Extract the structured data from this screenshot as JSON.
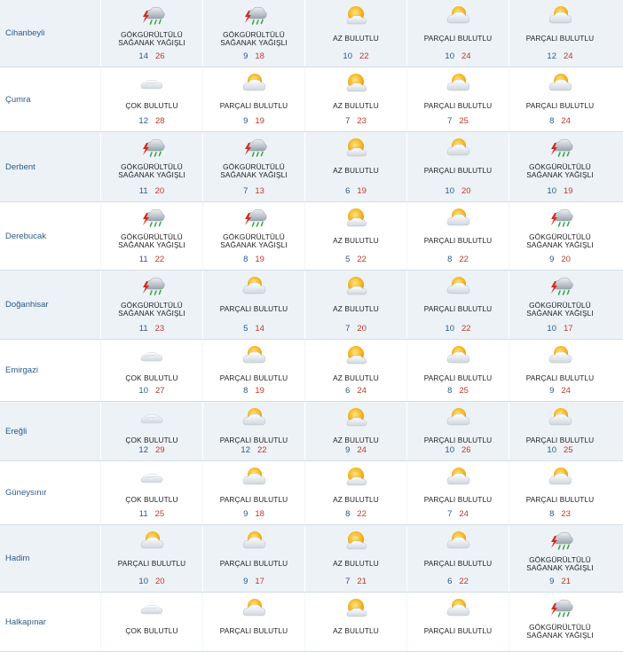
{
  "colors": {
    "row_shaded": "#edf2f7",
    "city_text": "#2a5a8a",
    "min_temp": "#2a5a8a",
    "max_temp": "#c0392b"
  },
  "rows": [
    {
      "city": "Cihanbeyli",
      "days": [
        {
          "icon": "thunderstorm-rain-icon",
          "condition": "GÖKGÜRÜLTÜLÜ SAĞANAK YAĞIŞLI",
          "min": "14",
          "max": "26"
        },
        {
          "icon": "thunderstorm-rain-icon",
          "condition": "GÖKGÜRÜLTÜLÜ SAĞANAK YAĞIŞLI",
          "min": "9",
          "max": "18"
        },
        {
          "icon": "sun-cloud-icon",
          "condition": "AZ BULUTLU",
          "min": "10",
          "max": "22"
        },
        {
          "icon": "partly-cloudy-icon",
          "condition": "PARÇALI BULUTLU",
          "min": "10",
          "max": "24"
        },
        {
          "icon": "partly-cloudy-icon",
          "condition": "PARÇALI BULUTLU",
          "min": "12",
          "max": "24"
        }
      ]
    },
    {
      "city": "Çumra",
      "days": [
        {
          "icon": "cloudy-icon",
          "condition": "ÇOK BULUTLU",
          "min": "12",
          "max": "28"
        },
        {
          "icon": "partly-cloudy-icon",
          "condition": "PARÇALI BULUTLU",
          "min": "9",
          "max": "19"
        },
        {
          "icon": "sun-cloud-icon",
          "condition": "AZ BULUTLU",
          "min": "7",
          "max": "23"
        },
        {
          "icon": "partly-cloudy-icon",
          "condition": "PARÇALI BULUTLU",
          "min": "7",
          "max": "25"
        },
        {
          "icon": "partly-cloudy-icon",
          "condition": "PARÇALI BULUTLU",
          "min": "8",
          "max": "24"
        }
      ]
    },
    {
      "city": "Derbent",
      "days": [
        {
          "icon": "thunderstorm-rain-icon",
          "condition": "GÖKGÜRÜLTÜLÜ SAĞANAK YAĞIŞLI",
          "min": "11",
          "max": "20"
        },
        {
          "icon": "thunderstorm-rain-icon",
          "condition": "GÖKGÜRÜLTÜLÜ SAĞANAK YAĞIŞLI",
          "min": "7",
          "max": "13"
        },
        {
          "icon": "sun-cloud-icon",
          "condition": "AZ BULUTLU",
          "min": "6",
          "max": "19"
        },
        {
          "icon": "partly-cloudy-icon",
          "condition": "PARÇALI BULUTLU",
          "min": "10",
          "max": "20"
        },
        {
          "icon": "thunderstorm-rain-icon",
          "condition": "GÖKGÜRÜLTÜLÜ SAĞANAK YAĞIŞLI",
          "min": "10",
          "max": "19"
        }
      ]
    },
    {
      "city": "Derebucak",
      "days": [
        {
          "icon": "thunderstorm-rain-icon",
          "condition": "GÖKGÜRÜLTÜLÜ SAĞANAK YAĞIŞLI",
          "min": "11",
          "max": "22"
        },
        {
          "icon": "thunderstorm-rain-icon",
          "condition": "GÖKGÜRÜLTÜLÜ SAĞANAK YAĞIŞLI",
          "min": "8",
          "max": "19"
        },
        {
          "icon": "sun-cloud-icon",
          "condition": "AZ BULUTLU",
          "min": "5",
          "max": "22"
        },
        {
          "icon": "partly-cloudy-icon",
          "condition": "PARÇALI BULUTLU",
          "min": "8",
          "max": "22"
        },
        {
          "icon": "thunderstorm-rain-icon",
          "condition": "GÖKGÜRÜLTÜLÜ SAĞANAK YAĞIŞLI",
          "min": "9",
          "max": "20"
        }
      ]
    },
    {
      "city": "Doğanhisar",
      "days": [
        {
          "icon": "thunderstorm-rain-icon",
          "condition": "GÖKGÜRÜLTÜLÜ SAĞANAK YAĞIŞLI",
          "min": "11",
          "max": "23"
        },
        {
          "icon": "partly-cloudy-icon",
          "condition": "PARÇALI BULUTLU",
          "min": "5",
          "max": "14"
        },
        {
          "icon": "sun-cloud-icon",
          "condition": "AZ BULUTLU",
          "min": "7",
          "max": "20"
        },
        {
          "icon": "partly-cloudy-icon",
          "condition": "PARÇALI BULUTLU",
          "min": "10",
          "max": "22"
        },
        {
          "icon": "thunderstorm-rain-icon",
          "condition": "GÖKGÜRÜLTÜLÜ SAĞANAK YAĞIŞLI",
          "min": "10",
          "max": "17"
        }
      ]
    },
    {
      "city": "Emirgazi",
      "days": [
        {
          "icon": "cloudy-icon",
          "condition": "ÇOK BULUTLU",
          "min": "10",
          "max": "27"
        },
        {
          "icon": "partly-cloudy-icon",
          "condition": "PARÇALI BULUTLU",
          "min": "8",
          "max": "19"
        },
        {
          "icon": "sun-cloud-icon",
          "condition": "AZ BULUTLU",
          "min": "6",
          "max": "24"
        },
        {
          "icon": "partly-cloudy-icon",
          "condition": "PARÇALI BULUTLU",
          "min": "8",
          "max": "25"
        },
        {
          "icon": "partly-cloudy-icon",
          "condition": "PARÇALI BULUTLU",
          "min": "9",
          "max": "24"
        }
      ]
    },
    {
      "city": "Ereğli",
      "days": [
        {
          "icon": "cloudy-icon",
          "condition": "ÇOK BULUTLU",
          "min": "12",
          "max": "29"
        },
        {
          "icon": "partly-cloudy-icon",
          "condition": "PARÇALI BULUTLU",
          "min": "12",
          "max": "22"
        },
        {
          "icon": "sun-cloud-icon",
          "condition": "AZ BULUTLU",
          "min": "9",
          "max": "24"
        },
        {
          "icon": "partly-cloudy-icon",
          "condition": "PARÇALI BULUTLU",
          "min": "10",
          "max": "26"
        },
        {
          "icon": "partly-cloudy-icon",
          "condition": "PARÇALI BULUTLU",
          "min": "10",
          "max": "25"
        }
      ]
    },
    {
      "city": "Güneysınır",
      "days": [
        {
          "icon": "cloudy-icon",
          "condition": "ÇOK BULUTLU",
          "min": "11",
          "max": "25"
        },
        {
          "icon": "partly-cloudy-icon",
          "condition": "PARÇALI BULUTLU",
          "min": "9",
          "max": "18"
        },
        {
          "icon": "sun-cloud-icon",
          "condition": "AZ BULUTLU",
          "min": "8",
          "max": "22"
        },
        {
          "icon": "partly-cloudy-icon",
          "condition": "PARÇALI BULUTLU",
          "min": "7",
          "max": "24"
        },
        {
          "icon": "partly-cloudy-icon",
          "condition": "PARÇALI BULUTLU",
          "min": "8",
          "max": "23"
        }
      ]
    },
    {
      "city": "Hadim",
      "days": [
        {
          "icon": "partly-cloudy-icon",
          "condition": "PARÇALI BULUTLU",
          "min": "10",
          "max": "20"
        },
        {
          "icon": "partly-cloudy-icon",
          "condition": "PARÇALI BULUTLU",
          "min": "9",
          "max": "17"
        },
        {
          "icon": "sun-cloud-icon",
          "condition": "AZ BULUTLU",
          "min": "7",
          "max": "21"
        },
        {
          "icon": "partly-cloudy-icon",
          "condition": "PARÇALI BULUTLU",
          "min": "6",
          "max": "22"
        },
        {
          "icon": "thunderstorm-rain-icon",
          "condition": "GÖKGÜRÜLTÜLÜ SAĞANAK YAĞIŞLI",
          "min": "9",
          "max": "21"
        }
      ]
    },
    {
      "city": "Halkapınar",
      "days": [
        {
          "icon": "cloudy-icon",
          "condition": "ÇOK BULUTLU",
          "min": "",
          "max": ""
        },
        {
          "icon": "partly-cloudy-icon",
          "condition": "PARÇALI BULUTLU",
          "min": "",
          "max": ""
        },
        {
          "icon": "sun-cloud-icon",
          "condition": "AZ BULUTLU",
          "min": "",
          "max": ""
        },
        {
          "icon": "partly-cloudy-icon",
          "condition": "PARÇALI BULUTLU",
          "min": "",
          "max": ""
        },
        {
          "icon": "thunderstorm-rain-icon",
          "condition": "GÖKGÜRÜLTÜLÜ SAĞANAK YAĞIŞLI",
          "min": "",
          "max": ""
        }
      ]
    }
  ]
}
